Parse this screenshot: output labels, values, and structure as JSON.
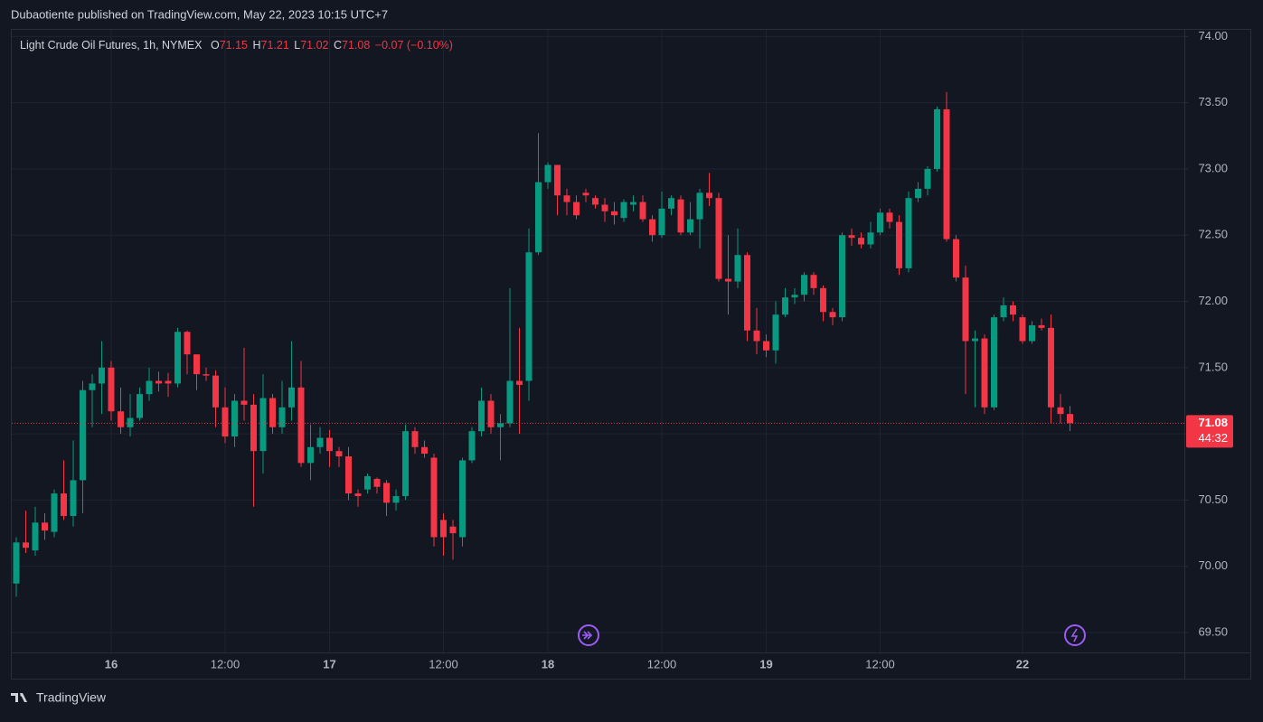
{
  "publisher_line": "Dubaotiente published on TradingView.com, May 22, 2023 10:15 UTC+7",
  "brand": "TradingView",
  "chart_data": {
    "type": "candlestick",
    "title": "Light Crude Oil Futures, 1h, NYMEX",
    "ohlc_letters": [
      "O",
      "H",
      "L",
      "C"
    ],
    "change_label": "−0.07 (−0.10%)",
    "countdown": "44:32",
    "up_color": "#089981",
    "down_color": "#f23645",
    "grid": true,
    "categories": [
      null,
      null,
      null,
      null,
      null,
      null,
      null,
      null,
      null,
      null,
      "16",
      null,
      null,
      null,
      null,
      null,
      null,
      null,
      null,
      null,
      null,
      null,
      "12:00",
      null,
      null,
      null,
      null,
      null,
      null,
      null,
      null,
      null,
      null,
      "17",
      null,
      null,
      null,
      null,
      null,
      null,
      null,
      null,
      null,
      null,
      null,
      "12:00",
      null,
      null,
      null,
      null,
      null,
      null,
      null,
      null,
      null,
      null,
      "18",
      null,
      null,
      null,
      null,
      null,
      null,
      null,
      null,
      null,
      null,
      null,
      "12:00",
      null,
      null,
      null,
      null,
      null,
      null,
      null,
      null,
      null,
      null,
      "19",
      null,
      null,
      null,
      null,
      null,
      null,
      null,
      null,
      null,
      null,
      null,
      "12:00",
      null,
      null,
      null,
      null,
      null,
      null,
      null,
      null,
      null,
      null,
      null,
      null,
      null,
      null,
      "22",
      null,
      null,
      null,
      null,
      null
    ],
    "open": [
      69.87,
      70.18,
      70.12,
      70.33,
      70.26,
      70.55,
      70.38,
      70.65,
      71.33,
      71.38,
      71.5,
      71.17,
      71.05,
      71.12,
      71.3,
      71.4,
      71.4,
      71.38,
      71.77,
      71.6,
      71.45,
      71.44,
      71.2,
      70.98,
      71.25,
      71.22,
      70.87,
      71.27,
      71.05,
      71.2,
      71.35,
      70.78,
      70.9,
      70.97,
      70.87,
      70.83,
      70.55,
      70.58,
      70.66,
      70.63,
      70.48,
      70.53,
      71.02,
      70.9,
      70.82,
      70.35,
      70.3,
      70.22,
      70.8,
      71.02,
      71.25,
      71.05,
      71.08,
      71.4,
      71.4,
      72.37,
      72.9,
      73.03,
      72.8,
      72.75,
      72.82,
      72.78,
      72.73,
      72.68,
      72.63,
      72.73,
      72.75,
      72.62,
      72.5,
      72.7,
      72.77,
      72.52,
      72.62,
      72.82,
      72.78,
      72.17,
      72.15,
      72.35,
      71.78,
      71.7,
      71.63,
      71.9,
      72.03,
      72.05,
      72.2,
      72.1,
      71.92,
      71.88,
      72.5,
      72.48,
      72.43,
      72.52,
      72.67,
      72.6,
      72.25,
      72.78,
      72.85,
      73.0,
      73.45,
      72.47,
      72.18,
      71.7,
      71.72,
      71.2,
      71.88,
      71.97,
      71.88,
      71.7,
      71.82,
      71.8,
      71.2,
      71.15
    ],
    "high": [
      70.22,
      70.42,
      70.45,
      70.4,
      70.58,
      70.8,
      70.95,
      71.4,
      71.45,
      71.7,
      71.55,
      71.35,
      71.3,
      71.35,
      71.5,
      71.47,
      71.46,
      71.8,
      71.78,
      71.6,
      71.5,
      71.48,
      71.35,
      71.3,
      71.65,
      71.3,
      71.45,
      71.3,
      71.4,
      71.7,
      71.55,
      71.07,
      71.05,
      71.03,
      70.9,
      70.9,
      70.58,
      70.7,
      70.67,
      70.65,
      70.58,
      71.07,
      71.05,
      70.95,
      70.85,
      70.4,
      70.35,
      70.82,
      71.05,
      71.35,
      71.3,
      71.15,
      72.1,
      71.8,
      72.55,
      73.27,
      73.05,
      73.03,
      72.85,
      72.8,
      72.85,
      72.8,
      72.78,
      72.75,
      72.77,
      72.8,
      72.8,
      72.65,
      72.83,
      72.8,
      72.8,
      72.75,
      72.85,
      72.97,
      72.82,
      72.5,
      72.55,
      72.37,
      71.95,
      71.75,
      72.0,
      72.1,
      72.1,
      72.22,
      72.22,
      72.12,
      71.95,
      72.52,
      72.55,
      72.52,
      72.6,
      72.7,
      72.7,
      72.65,
      72.83,
      72.9,
      73.02,
      73.47,
      73.58,
      72.5,
      72.27,
      71.78,
      71.75,
      71.9,
      72.03,
      72.0,
      71.9,
      71.85,
      71.87,
      71.9,
      71.3,
      71.21
    ],
    "low": [
      69.77,
      70.1,
      70.08,
      70.2,
      70.22,
      70.35,
      70.3,
      70.4,
      71.05,
      71.15,
      71.1,
      71.0,
      70.98,
      71.1,
      71.25,
      71.32,
      71.28,
      71.35,
      71.45,
      71.33,
      71.4,
      71.05,
      70.93,
      70.9,
      71.1,
      70.45,
      70.7,
      71.0,
      71.0,
      71.1,
      70.75,
      70.65,
      70.85,
      70.75,
      70.75,
      70.5,
      70.45,
      70.55,
      70.55,
      70.38,
      70.42,
      70.5,
      70.85,
      70.82,
      70.15,
      70.08,
      70.05,
      70.15,
      70.78,
      70.98,
      71.0,
      70.8,
      71.05,
      71.0,
      71.25,
      72.35,
      72.85,
      72.65,
      72.65,
      72.62,
      72.75,
      72.7,
      72.6,
      72.58,
      72.6,
      72.68,
      72.6,
      72.45,
      72.48,
      72.65,
      72.5,
      72.5,
      72.4,
      72.72,
      72.15,
      71.9,
      72.1,
      71.7,
      71.6,
      71.58,
      71.53,
      71.88,
      71.98,
      72.0,
      72.05,
      71.85,
      71.82,
      71.85,
      72.42,
      72.4,
      72.4,
      72.5,
      72.55,
      72.2,
      72.22,
      72.75,
      72.8,
      72.98,
      72.45,
      72.15,
      71.3,
      71.2,
      71.15,
      71.18,
      71.85,
      71.85,
      71.68,
      71.68,
      71.78,
      71.08,
      71.08,
      71.02
    ],
    "close": [
      70.18,
      70.14,
      70.33,
      70.27,
      70.55,
      70.38,
      70.65,
      71.33,
      71.38,
      71.5,
      71.17,
      71.05,
      71.12,
      71.3,
      71.4,
      71.38,
      71.38,
      71.77,
      71.6,
      71.45,
      71.44,
      71.2,
      70.98,
      71.25,
      71.22,
      70.87,
      71.27,
      71.05,
      71.2,
      71.35,
      70.78,
      70.9,
      70.97,
      70.87,
      70.83,
      70.55,
      70.53,
      70.68,
      70.6,
      70.48,
      70.53,
      71.02,
      70.9,
      70.85,
      70.22,
      70.22,
      70.25,
      70.8,
      71.02,
      71.25,
      71.05,
      71.08,
      71.4,
      71.37,
      72.37,
      72.9,
      73.03,
      72.8,
      72.75,
      72.65,
      72.8,
      72.73,
      72.68,
      72.65,
      72.75,
      72.75,
      72.62,
      72.5,
      72.7,
      72.78,
      72.52,
      72.62,
      72.82,
      72.78,
      72.17,
      72.15,
      72.35,
      71.78,
      71.7,
      71.63,
      71.9,
      72.03,
      72.05,
      72.2,
      72.1,
      71.92,
      71.88,
      72.5,
      72.48,
      72.43,
      72.52,
      72.67,
      72.6,
      72.25,
      72.78,
      72.85,
      73.0,
      73.45,
      72.47,
      72.18,
      71.7,
      71.72,
      71.2,
      71.88,
      71.97,
      71.9,
      71.7,
      71.82,
      71.8,
      71.2,
      71.15,
      71.08
    ],
    "ylim": [
      69.35,
      74.05
    ],
    "yticks": [
      {
        "value": 69.5,
        "label": "69.50"
      },
      {
        "value": 70,
        "label": "70.00"
      },
      {
        "value": 70.5,
        "label": "70.50"
      },
      {
        "value": 71,
        "label": "71.00"
      },
      {
        "value": 71.5,
        "label": "71.50"
      },
      {
        "value": 72,
        "label": "72.00"
      },
      {
        "value": 72.5,
        "label": "72.50"
      },
      {
        "value": 73,
        "label": "73.00"
      },
      {
        "value": 73.5,
        "label": "73.50"
      },
      {
        "value": 74,
        "label": "74.00"
      }
    ]
  }
}
